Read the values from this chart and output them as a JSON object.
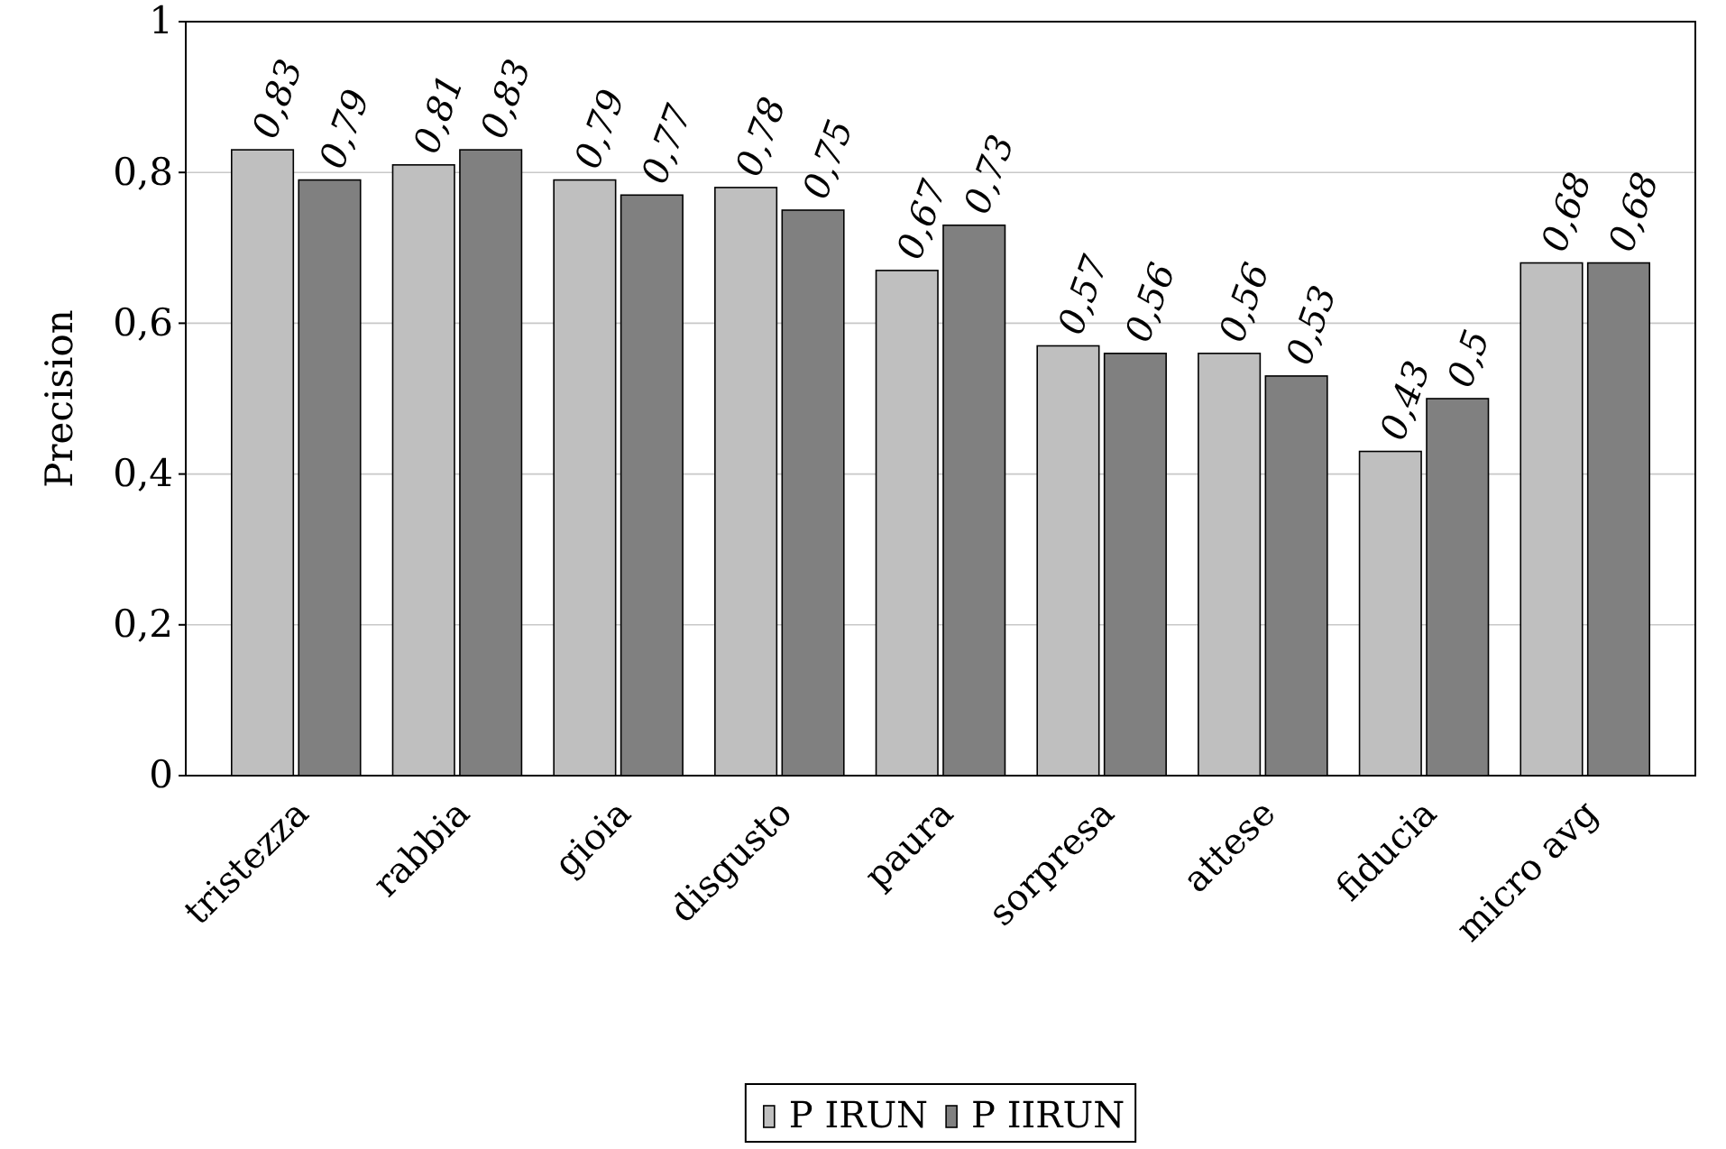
{
  "chart_data": {
    "type": "bar",
    "ylabel": "Precision",
    "categories": [
      "tristezza",
      "rabbia",
      "gioia",
      "disgusto",
      "paura",
      "sorpresa",
      "attese",
      "fiducia",
      "micro avg"
    ],
    "series": [
      {
        "name": "P IRUN",
        "color": "#bfbfbf",
        "values": [
          0.83,
          0.81,
          0.79,
          0.78,
          0.67,
          0.57,
          0.56,
          0.43,
          0.68
        ],
        "value_labels": [
          "0,83",
          "0,81",
          "0,79",
          "0,78",
          "0,67",
          "0,57",
          "0,56",
          "0,43",
          "0,68"
        ]
      },
      {
        "name": "P IIRUN",
        "color": "#808080",
        "values": [
          0.79,
          0.83,
          0.77,
          0.75,
          0.73,
          0.56,
          0.53,
          0.5,
          0.68
        ],
        "value_labels": [
          "0,79",
          "0,83",
          "0,77",
          "0,75",
          "0,73",
          "0,56",
          "0,53",
          "0,5",
          "0,68"
        ]
      }
    ],
    "ylim": [
      0,
      1
    ],
    "yticks": [
      0,
      {
        "value": 0.2,
        "label": "0,2"
      },
      {
        "value": 0.4,
        "label": "0,4"
      },
      {
        "value": 0.6,
        "label": "0,6"
      },
      {
        "value": 0.8,
        "label": "0,8"
      },
      1
    ],
    "grid": "y",
    "legend": "bottom"
  }
}
